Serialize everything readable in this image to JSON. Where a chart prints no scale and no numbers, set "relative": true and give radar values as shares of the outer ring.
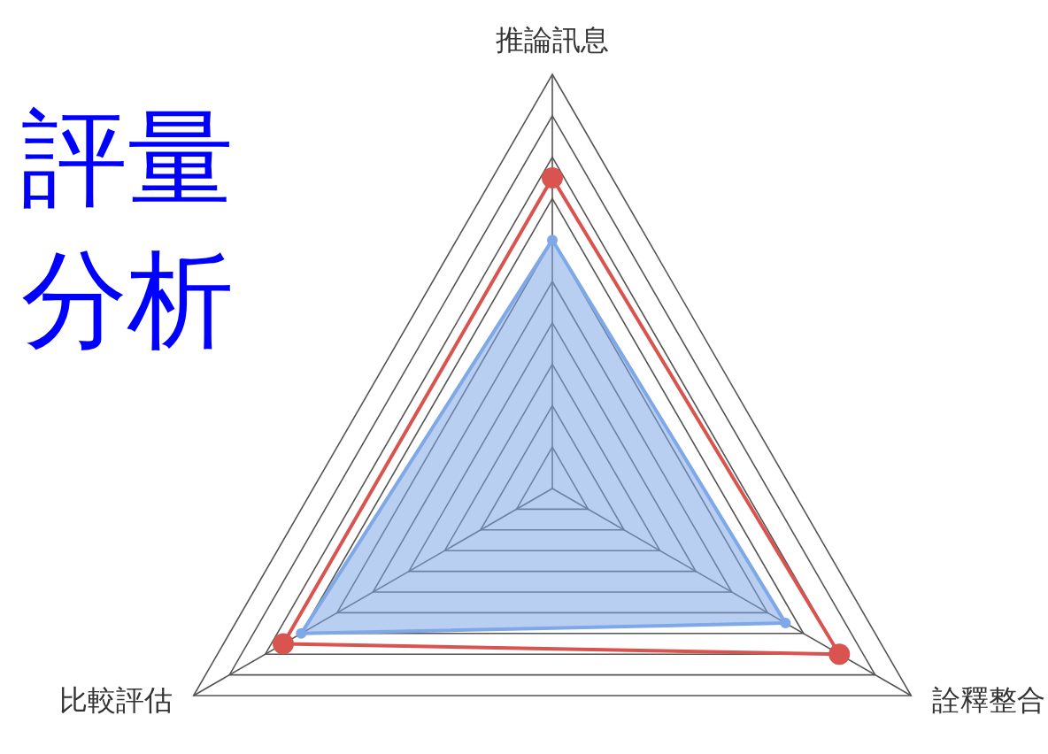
{
  "chart_data": {
    "type": "radar",
    "title": "評量分析",
    "relative": true,
    "categories": [
      "推論訊息",
      "詮釋整合",
      "比較評估"
    ],
    "grid": true,
    "marker": "circle",
    "series": [
      {
        "color": "#7fa8e8",
        "values": [
          0.6,
          0.65,
          0.7
        ]
      },
      {
        "color": "#d9534f",
        "values": [
          0.75,
          0.8,
          0.75
        ]
      }
    ]
  }
}
